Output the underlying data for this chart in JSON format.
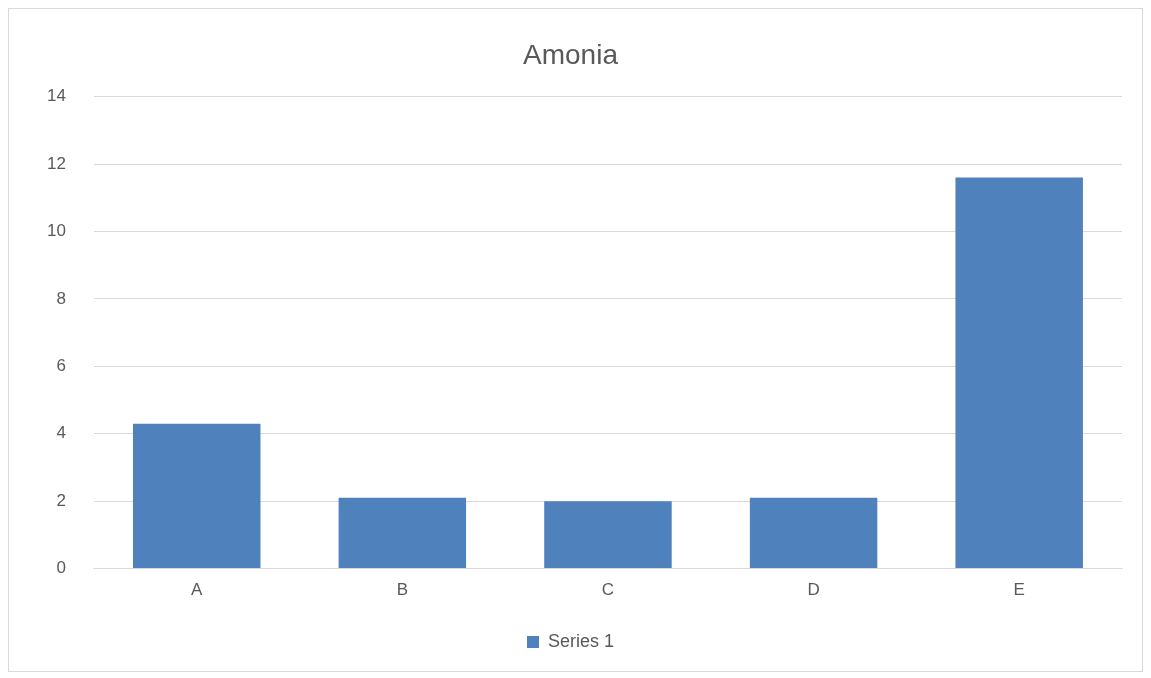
{
  "chart_data": {
    "type": "bar",
    "title": "Amonia",
    "categories": [
      "A",
      "B",
      "C",
      "D",
      "E"
    ],
    "series": [
      {
        "name": "Series 1",
        "color": "#4f81bd",
        "values": [
          4.3,
          2.1,
          2.0,
          2.1,
          11.6
        ]
      }
    ],
    "ylim": [
      0,
      14
    ],
    "yticks": [
      0,
      2,
      4,
      6,
      8,
      10,
      12,
      14
    ],
    "grid": "y",
    "legend": "bottom"
  }
}
